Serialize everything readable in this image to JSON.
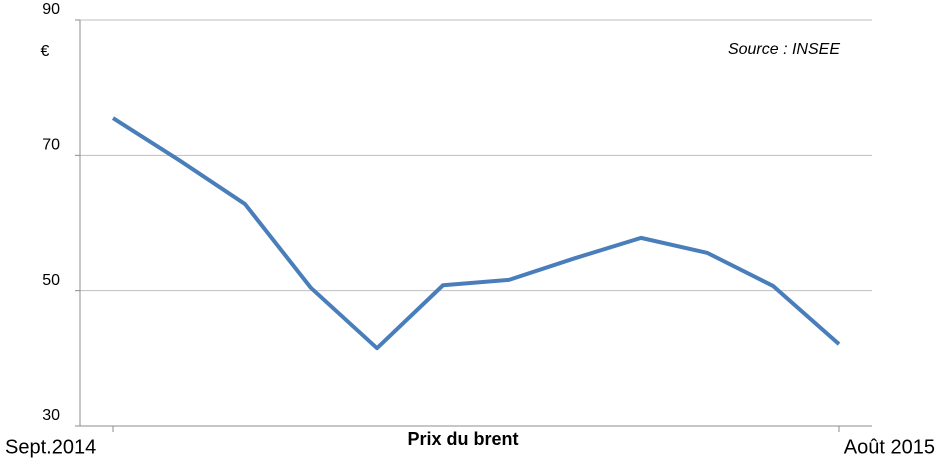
{
  "chart_data": {
    "type": "line",
    "y_label": "€",
    "x_label": "Prix du brent",
    "annotation": "Source : INSEE",
    "categories": [
      "Sept.2014",
      null,
      null,
      null,
      null,
      null,
      null,
      null,
      null,
      null,
      null,
      "Août 2015"
    ],
    "series": [
      {
        "name": "Prix du brent",
        "color": "#4a7ebb",
        "values": [
          75.5,
          69.3,
          62.8,
          50.4,
          41.5,
          50.8,
          51.6,
          54.8,
          57.8,
          55.6,
          50.7,
          42.1
        ]
      }
    ],
    "ylim": [
      30,
      90
    ],
    "yticks": [
      30,
      50,
      70,
      90
    ],
    "grid": true
  }
}
